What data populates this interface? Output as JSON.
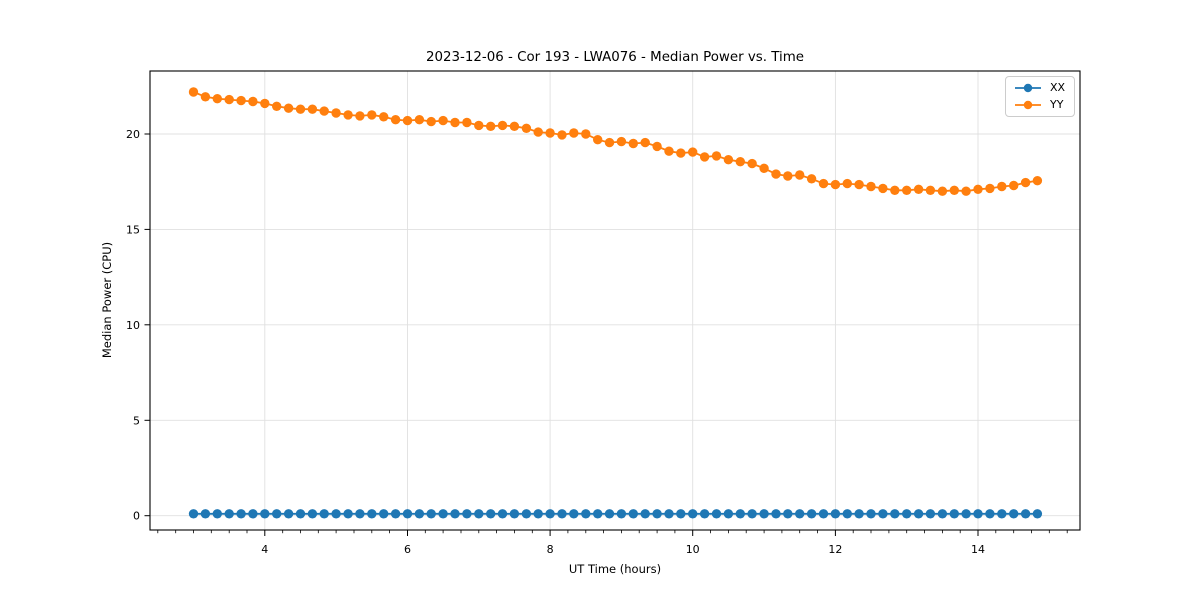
{
  "chart_data": {
    "type": "line",
    "title": "2023-12-06 - Cor 193 - LWA076 - Median Power vs. Time",
    "xlabel": "UT Time (hours)",
    "ylabel": "Median Power (CPU)",
    "xlim": [
      2.39,
      15.43
    ],
    "ylim": [
      -0.75,
      23.3
    ],
    "x_major_ticks": [
      4,
      6,
      8,
      10,
      12,
      14
    ],
    "x_minor_step": 0.25,
    "y_major_ticks": [
      0,
      5,
      10,
      15,
      20
    ],
    "grid": true,
    "legend_position": "upper right",
    "marker": "circle",
    "x": [
      3.0,
      3.167,
      3.333,
      3.5,
      3.667,
      3.833,
      4.0,
      4.167,
      4.333,
      4.5,
      4.667,
      4.833,
      5.0,
      5.167,
      5.333,
      5.5,
      5.667,
      5.833,
      6.0,
      6.167,
      6.333,
      6.5,
      6.667,
      6.833,
      7.0,
      7.167,
      7.333,
      7.5,
      7.667,
      7.833,
      8.0,
      8.167,
      8.333,
      8.5,
      8.667,
      8.833,
      9.0,
      9.167,
      9.333,
      9.5,
      9.667,
      9.833,
      10.0,
      10.167,
      10.333,
      10.5,
      10.667,
      10.833,
      11.0,
      11.167,
      11.333,
      11.5,
      11.667,
      11.833,
      12.0,
      12.167,
      12.333,
      12.5,
      12.667,
      12.833,
      13.0,
      13.167,
      13.333,
      13.5,
      13.667,
      13.833,
      14.0,
      14.167,
      14.333,
      14.5,
      14.667,
      14.833
    ],
    "series": [
      {
        "name": "XX",
        "color": "#1f77b4",
        "values": [
          0.1,
          0.1,
          0.1,
          0.1,
          0.1,
          0.1,
          0.1,
          0.1,
          0.1,
          0.1,
          0.1,
          0.1,
          0.1,
          0.1,
          0.1,
          0.1,
          0.1,
          0.1,
          0.1,
          0.1,
          0.1,
          0.1,
          0.1,
          0.1,
          0.1,
          0.1,
          0.1,
          0.1,
          0.1,
          0.1,
          0.1,
          0.1,
          0.1,
          0.1,
          0.1,
          0.1,
          0.1,
          0.1,
          0.1,
          0.1,
          0.1,
          0.1,
          0.1,
          0.1,
          0.1,
          0.1,
          0.1,
          0.1,
          0.1,
          0.1,
          0.1,
          0.1,
          0.1,
          0.1,
          0.1,
          0.1,
          0.1,
          0.1,
          0.1,
          0.1,
          0.1,
          0.1,
          0.1,
          0.1,
          0.1,
          0.1,
          0.1,
          0.1,
          0.1,
          0.1,
          0.1,
          0.1
        ]
      },
      {
        "name": "YY",
        "color": "#ff7f0e",
        "values": [
          22.2,
          21.95,
          21.85,
          21.8,
          21.75,
          21.7,
          21.6,
          21.45,
          21.35,
          21.3,
          21.3,
          21.2,
          21.1,
          21.0,
          20.95,
          21.0,
          20.9,
          20.75,
          20.7,
          20.75,
          20.65,
          20.7,
          20.6,
          20.6,
          20.45,
          20.4,
          20.45,
          20.4,
          20.3,
          20.1,
          20.05,
          19.95,
          20.05,
          20.0,
          19.7,
          19.55,
          19.6,
          19.5,
          19.55,
          19.35,
          19.1,
          19.0,
          19.05,
          18.8,
          18.85,
          18.65,
          18.55,
          18.45,
          18.2,
          17.9,
          17.8,
          17.85,
          17.65,
          17.4,
          17.35,
          17.4,
          17.35,
          17.25,
          17.15,
          17.05,
          17.05,
          17.1,
          17.05,
          17.0,
          17.05,
          17.0,
          17.1,
          17.15,
          17.25,
          17.3,
          17.45,
          17.55
        ]
      }
    ]
  }
}
